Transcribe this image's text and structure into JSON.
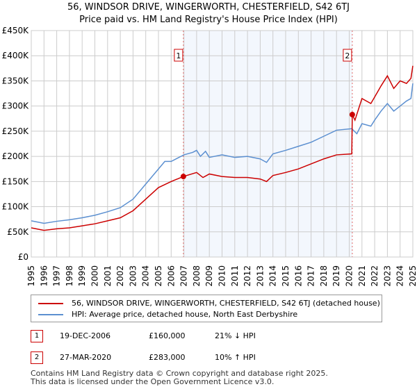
{
  "chart_data": {
    "type": "line",
    "title": "56, WINDSOR DRIVE, WINGERWORTH, CHESTERFIELD, S42 6TJ",
    "subtitle": "Price paid vs. HM Land Registry's House Price Index (HPI)",
    "xlim": [
      1995,
      2025
    ],
    "ylim": [
      0,
      450000
    ],
    "yticks": [
      {
        "v": 0,
        "label": "£0"
      },
      {
        "v": 50000,
        "label": "£50K"
      },
      {
        "v": 100000,
        "label": "£100K"
      },
      {
        "v": 150000,
        "label": "£150K"
      },
      {
        "v": 200000,
        "label": "£200K"
      },
      {
        "v": 250000,
        "label": "£250K"
      },
      {
        "v": 300000,
        "label": "£300K"
      },
      {
        "v": 350000,
        "label": "£350K"
      },
      {
        "v": 400000,
        "label": "£400K"
      },
      {
        "v": 450000,
        "label": "£450K"
      }
    ],
    "xticks": [
      "1995",
      "1996",
      "1997",
      "1998",
      "1999",
      "2000",
      "2001",
      "2002",
      "2003",
      "2004",
      "2005",
      "2006",
      "2007",
      "2008",
      "2009",
      "2010",
      "2011",
      "2012",
      "2013",
      "2014",
      "2015",
      "2016",
      "2017",
      "2018",
      "2019",
      "2020",
      "2021",
      "2022",
      "2023",
      "2024",
      "2025"
    ],
    "grid": true,
    "shaded_range": [
      2006.96,
      2020.24
    ],
    "series": [
      {
        "name": "56, WINDSOR DRIVE, WINGERWORTH, CHESTERFIELD, S42 6TJ (detached house)",
        "color": "#cc0000",
        "points": [
          [
            1995,
            58000
          ],
          [
            1996,
            53000
          ],
          [
            1997,
            56000
          ],
          [
            1998,
            58000
          ],
          [
            1999,
            62000
          ],
          [
            2000,
            66000
          ],
          [
            2001,
            72000
          ],
          [
            2002,
            78000
          ],
          [
            2003,
            92000
          ],
          [
            2004,
            115000
          ],
          [
            2005,
            138000
          ],
          [
            2006,
            150000
          ],
          [
            2006.96,
            160000
          ],
          [
            2008,
            168000
          ],
          [
            2008.5,
            158000
          ],
          [
            2009,
            165000
          ],
          [
            2010,
            160000
          ],
          [
            2011,
            158000
          ],
          [
            2012,
            158000
          ],
          [
            2013,
            155000
          ],
          [
            2013.5,
            150000
          ],
          [
            2014,
            162000
          ],
          [
            2015,
            168000
          ],
          [
            2016,
            175000
          ],
          [
            2017,
            185000
          ],
          [
            2018,
            195000
          ],
          [
            2019,
            203000
          ],
          [
            2020.2,
            205000
          ],
          [
            2020.24,
            283000
          ],
          [
            2020.45,
            272000
          ],
          [
            2021,
            315000
          ],
          [
            2021.7,
            305000
          ],
          [
            2022,
            318000
          ],
          [
            2022.5,
            340000
          ],
          [
            2023,
            360000
          ],
          [
            2023.5,
            335000
          ],
          [
            2024,
            350000
          ],
          [
            2024.5,
            345000
          ],
          [
            2024.85,
            355000
          ],
          [
            2025,
            380000
          ]
        ]
      },
      {
        "name": "HPI: Average price, detached house, North East Derbyshire",
        "color": "#5b8fd0",
        "points": [
          [
            1995,
            72000
          ],
          [
            1996,
            67000
          ],
          [
            1997,
            71000
          ],
          [
            1998,
            74000
          ],
          [
            1999,
            78000
          ],
          [
            2000,
            83000
          ],
          [
            2001,
            90000
          ],
          [
            2002,
            98000
          ],
          [
            2003,
            115000
          ],
          [
            2004,
            145000
          ],
          [
            2005,
            175000
          ],
          [
            2005.5,
            190000
          ],
          [
            2006,
            190000
          ],
          [
            2007,
            203000
          ],
          [
            2007.7,
            208000
          ],
          [
            2008,
            212000
          ],
          [
            2008.3,
            200000
          ],
          [
            2008.7,
            210000
          ],
          [
            2009,
            198000
          ],
          [
            2010,
            203000
          ],
          [
            2011,
            198000
          ],
          [
            2012,
            200000
          ],
          [
            2013,
            195000
          ],
          [
            2013.5,
            188000
          ],
          [
            2014,
            205000
          ],
          [
            2015,
            212000
          ],
          [
            2016,
            220000
          ],
          [
            2017,
            228000
          ],
          [
            2018,
            240000
          ],
          [
            2019,
            252000
          ],
          [
            2020.2,
            255000
          ],
          [
            2020.6,
            245000
          ],
          [
            2021,
            265000
          ],
          [
            2021.7,
            260000
          ],
          [
            2022,
            272000
          ],
          [
            2022.5,
            290000
          ],
          [
            2023,
            305000
          ],
          [
            2023.5,
            290000
          ],
          [
            2024,
            300000
          ],
          [
            2024.5,
            310000
          ],
          [
            2024.85,
            315000
          ],
          [
            2025,
            345000
          ]
        ]
      }
    ],
    "sales": [
      {
        "label": "1",
        "x": 2006.96,
        "y": 160000
      },
      {
        "label": "2",
        "x": 2020.24,
        "y": 283000
      }
    ]
  },
  "transactions": [
    {
      "num": "1",
      "date": "19-DEC-2006",
      "price": "£160,000",
      "hpi": "21% ↓ HPI"
    },
    {
      "num": "2",
      "date": "27-MAR-2020",
      "price": "£283,000",
      "hpi": "10% ↑ HPI"
    }
  ],
  "footer": [
    "Contains HM Land Registry data © Crown copyright and database right 2025.",
    "This data is licensed under the Open Government Licence v3.0."
  ]
}
